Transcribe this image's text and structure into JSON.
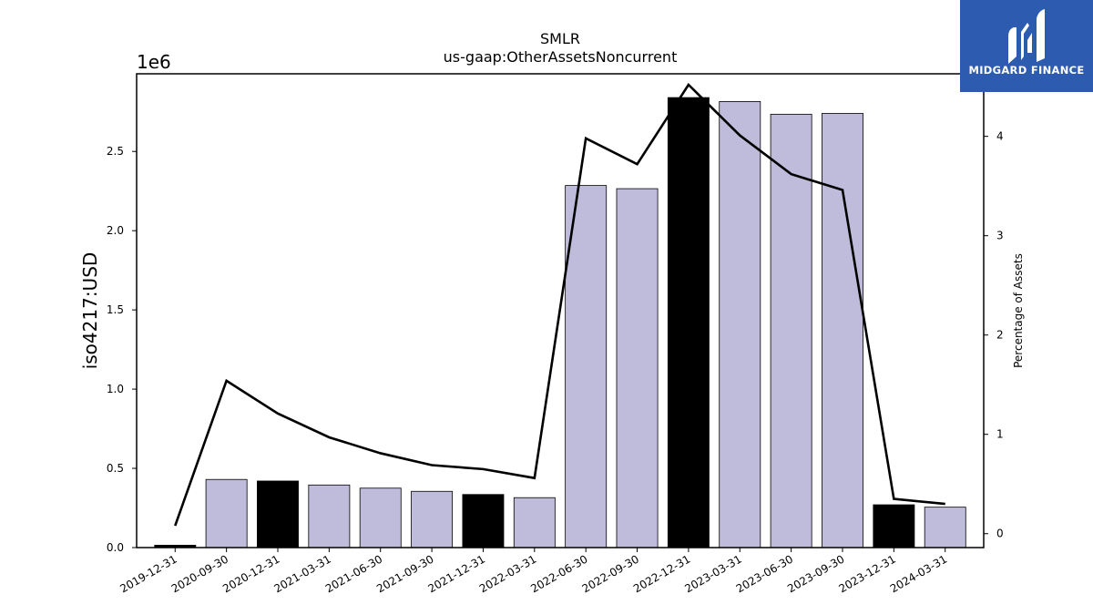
{
  "chart_data": {
    "type": "bar",
    "title": "SMLR",
    "subtitle": "us-gaap:OtherAssetsNoncurrent",
    "ylabel": "iso4217:USD",
    "y2label": "Percentage of Assets",
    "y_offset_label": "1e6",
    "ylim": [
      0,
      2990000
    ],
    "y2lim": [
      -0.14,
      4.63
    ],
    "yticks": [
      "0.0",
      "0.5",
      "1.0",
      "1.5",
      "2.0",
      "2.5"
    ],
    "y2ticks": [
      "0",
      "1",
      "2",
      "3",
      "4"
    ],
    "categories": [
      "2019-12-31",
      "2020-09-30",
      "2020-12-31",
      "2021-03-31",
      "2021-06-30",
      "2021-09-30",
      "2021-12-31",
      "2022-03-31",
      "2022-06-30",
      "2022-09-30",
      "2022-12-31",
      "2023-03-31",
      "2023-06-30",
      "2023-09-30",
      "2023-12-31",
      "2024-03-31"
    ],
    "series": [
      {
        "type": "bar",
        "values": [
          15000,
          430000,
          420000,
          395000,
          375000,
          355000,
          335000,
          315000,
          2285000,
          2265000,
          2840000,
          2815000,
          2735000,
          2740000,
          270000,
          255000
        ],
        "colors": [
          "#000000",
          "#bfbcdb",
          "#000000",
          "#bfbcdb",
          "#bfbcdb",
          "#bfbcdb",
          "#000000",
          "#bfbcdb",
          "#bfbcdb",
          "#bfbcdb",
          "#000000",
          "#bfbcdb",
          "#bfbcdb",
          "#bfbcdb",
          "#000000",
          "#bfbcdb"
        ]
      },
      {
        "type": "line",
        "axis": "right",
        "values": [
          0.08,
          1.54,
          1.21,
          0.97,
          0.81,
          0.69,
          0.65,
          0.56,
          3.98,
          3.72,
          4.52,
          4.01,
          3.62,
          3.46,
          0.35,
          0.3
        ],
        "color": "#000000"
      }
    ],
    "grid": false
  },
  "logo": {
    "text": "MIDGARD FINANCE",
    "bg_color": "#2d5bb0"
  }
}
